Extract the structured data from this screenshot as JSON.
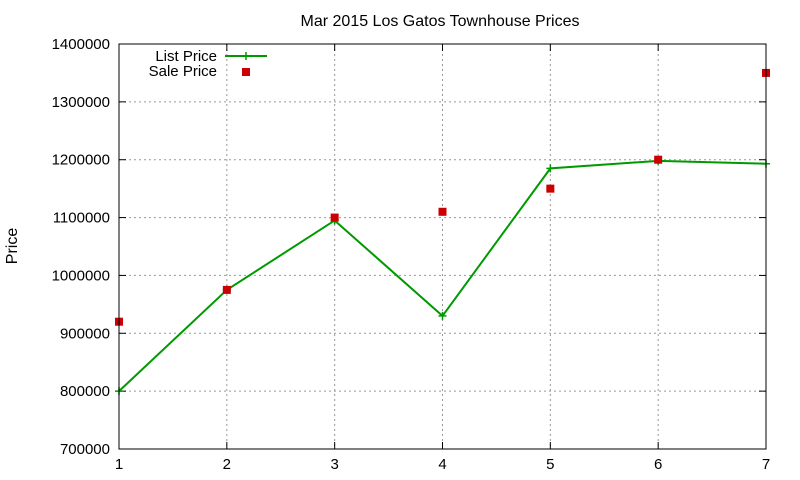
{
  "chart_data": {
    "type": "line",
    "title": "Mar 2015 Los Gatos Townhouse Prices",
    "xlabel": "",
    "ylabel": "Price",
    "xlim": [
      1,
      7
    ],
    "ylim": [
      700000,
      1400000
    ],
    "x_ticks": [
      "1",
      "2",
      "3",
      "4",
      "5",
      "6",
      "7"
    ],
    "y_ticks": [
      "700000",
      "800000",
      "900000",
      "1000000",
      "1100000",
      "1200000",
      "1300000",
      "1400000"
    ],
    "grid": true,
    "legend_position": "top-left",
    "series": [
      {
        "name": "List Price",
        "style": "line-with-plus-markers",
        "color": "#009900",
        "x": [
          1,
          2,
          3,
          4,
          5,
          6,
          7
        ],
        "y": [
          800000,
          975000,
          1095000,
          930000,
          1185000,
          1198000,
          1193000
        ]
      },
      {
        "name": "Sale Price",
        "style": "square-markers",
        "color": "#cc0000",
        "x": [
          1,
          2,
          3,
          4,
          5,
          6,
          7
        ],
        "y": [
          920000,
          975000,
          1100000,
          1110000,
          1150000,
          1200000,
          1350000
        ]
      }
    ]
  }
}
